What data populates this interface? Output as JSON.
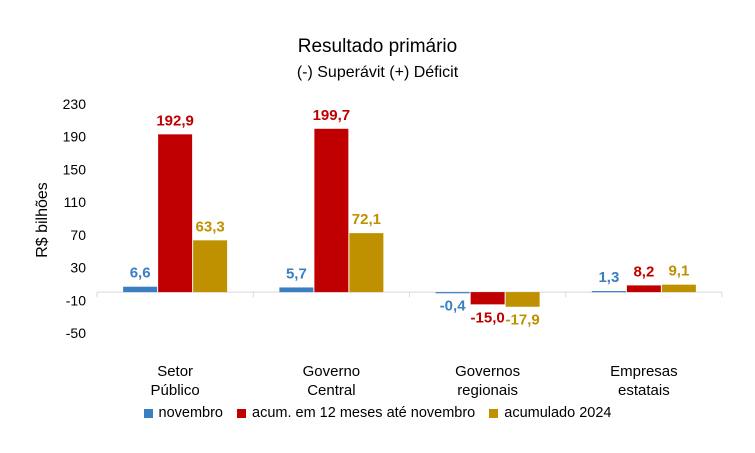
{
  "chart_data": {
    "type": "bar",
    "title": "Resultado primário",
    "subtitle": "(-) Superávit  (+) Déficit",
    "ylabel": "R$ bilhões",
    "xlabel": "",
    "ylim": [
      -50,
      230
    ],
    "yticks": [
      230,
      190,
      150,
      110,
      70,
      30,
      -10,
      -50
    ],
    "grid": false,
    "legend_position": "bottom",
    "categories": [
      [
        "Setor",
        "Público"
      ],
      [
        "Governo",
        "Central"
      ],
      [
        "Governos",
        "regionais"
      ],
      [
        "Empresas",
        "estatais"
      ]
    ],
    "series": [
      {
        "name": "novembro",
        "color": "#3A7FC1",
        "values": [
          6.6,
          5.7,
          -0.4,
          1.3
        ],
        "labels": [
          "6,6",
          "5,7",
          "-0,4",
          "1,3"
        ]
      },
      {
        "name": "acum. em 12 meses até novembro",
        "color": "#C00000",
        "values": [
          192.9,
          199.7,
          -15.0,
          8.2
        ],
        "labels": [
          "192,9",
          "199,7",
          "-15,0",
          "8,2"
        ]
      },
      {
        "name": "acumulado 2024",
        "color": "#BF9000",
        "values": [
          63.3,
          72.1,
          -17.9,
          9.1
        ],
        "labels": [
          "63,3",
          "72,1",
          "-17,9",
          "9,1"
        ]
      }
    ]
  }
}
